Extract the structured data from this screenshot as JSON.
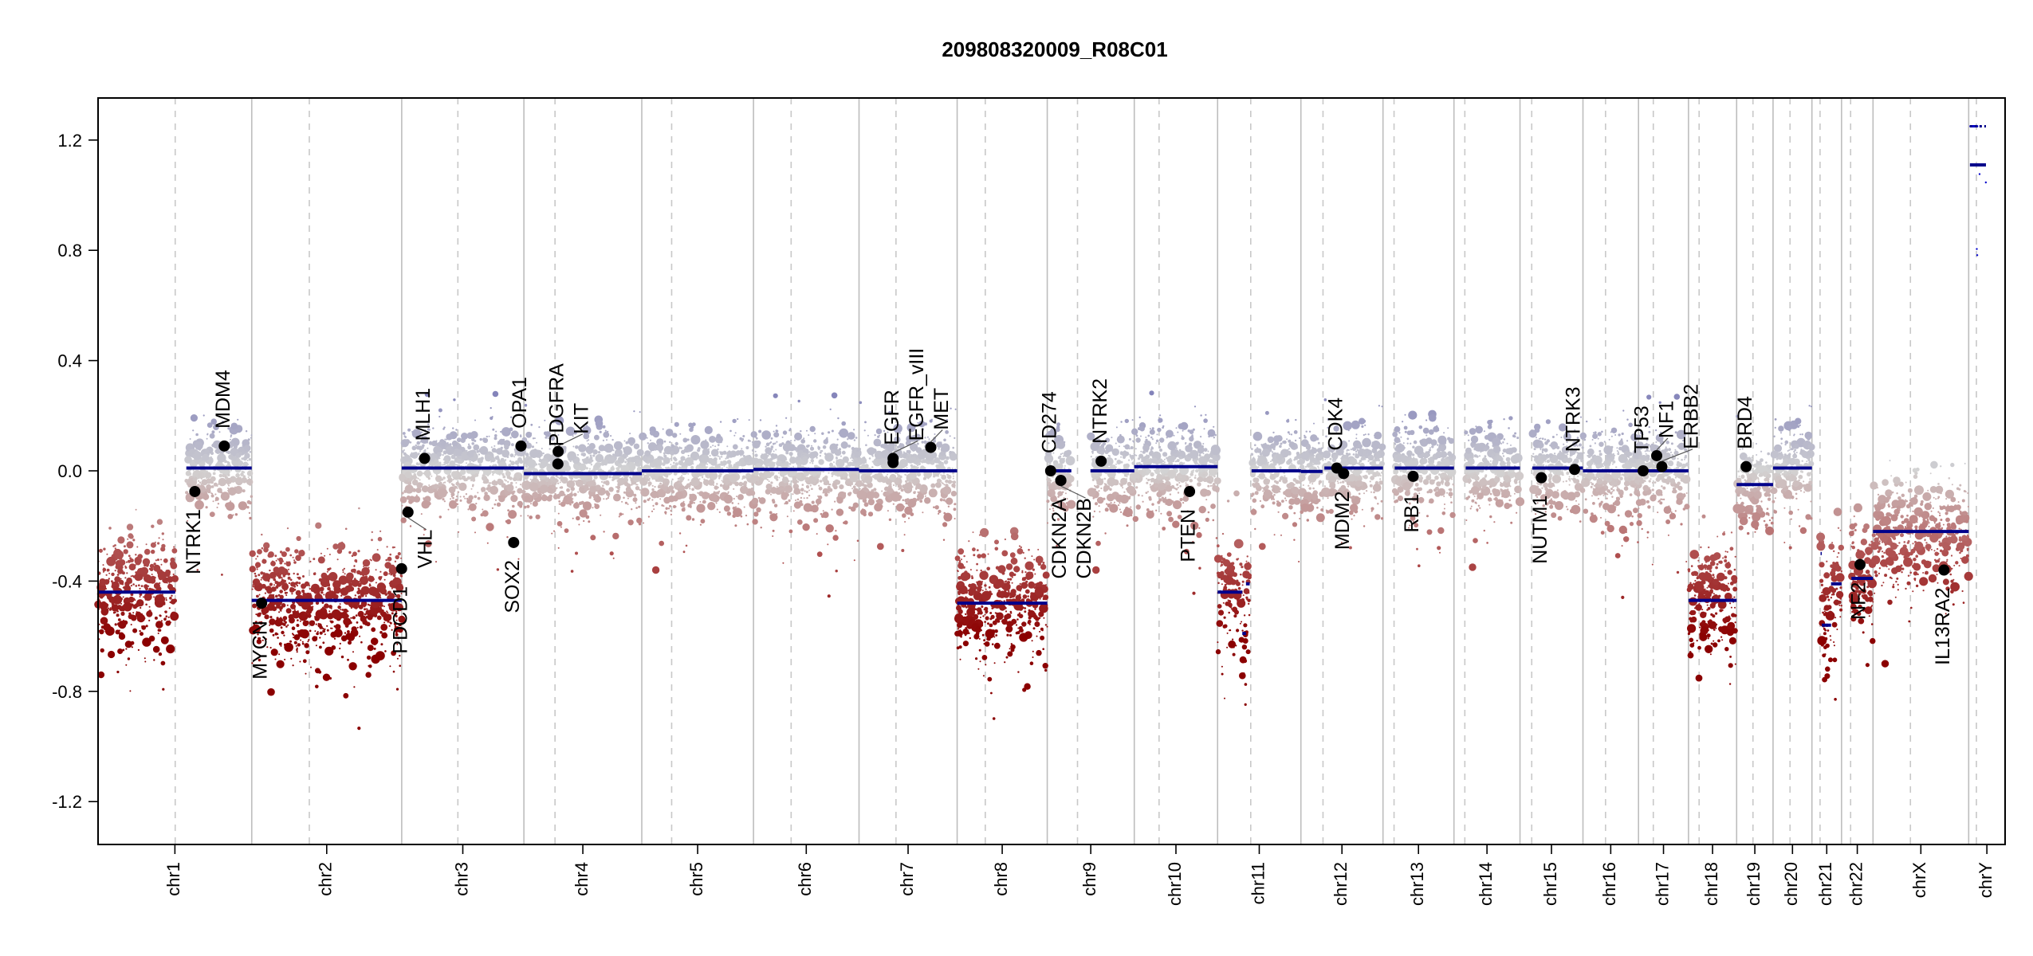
{
  "chart_data": {
    "type": "scatter",
    "title": "209808320009_R08C01",
    "xlabel": "",
    "ylabel": "",
    "ylim": [
      -1.35,
      1.35
    ],
    "yticks": [
      "1.2",
      "0.8",
      "0.4",
      "0.0",
      "-0.4",
      "-0.8",
      "-1.2"
    ],
    "ytick_values": [
      1.2,
      0.8,
      0.4,
      0.0,
      -0.4,
      -0.8,
      -1.2
    ],
    "colors": {
      "segment": "#00008b",
      "gain": "#7e7eb8",
      "neutral": "#d3d3d3",
      "loss_mid": "#b05050",
      "loss": "#8b0000",
      "gene_dot": "#000000",
      "chrom_line": "#bdbdbd",
      "centromere_line": "#c8c8c8"
    },
    "chromosomes": [
      {
        "name": "chr1",
        "length_mb": 249,
        "centromere_mb": 125
      },
      {
        "name": "chr2",
        "length_mb": 243,
        "centromere_mb": 93.3
      },
      {
        "name": "chr3",
        "length_mb": 198,
        "centromere_mb": 91
      },
      {
        "name": "chr4",
        "length_mb": 191,
        "centromere_mb": 50.4
      },
      {
        "name": "chr5",
        "length_mb": 181,
        "centromere_mb": 48.4
      },
      {
        "name": "chr6",
        "length_mb": 171,
        "centromere_mb": 61
      },
      {
        "name": "chr7",
        "length_mb": 159,
        "centromere_mb": 59.9
      },
      {
        "name": "chr8",
        "length_mb": 146,
        "centromere_mb": 45.6
      },
      {
        "name": "chr9",
        "length_mb": 141,
        "centromere_mb": 49
      },
      {
        "name": "chr10",
        "length_mb": 135,
        "centromere_mb": 40.2
      },
      {
        "name": "chr11",
        "length_mb": 135,
        "centromere_mb": 53.7
      },
      {
        "name": "chr12",
        "length_mb": 133,
        "centromere_mb": 35.8
      },
      {
        "name": "chr13",
        "length_mb": 115,
        "centromere_mb": 17.9
      },
      {
        "name": "chr14",
        "length_mb": 107,
        "centromere_mb": 17.6
      },
      {
        "name": "chr15",
        "length_mb": 102,
        "centromere_mb": 19
      },
      {
        "name": "chr16",
        "length_mb": 90,
        "centromere_mb": 36.6
      },
      {
        "name": "chr17",
        "length_mb": 81,
        "centromere_mb": 24
      },
      {
        "name": "chr18",
        "length_mb": 78,
        "centromere_mb": 17.2
      },
      {
        "name": "chr19",
        "length_mb": 59,
        "centromere_mb": 26.5
      },
      {
        "name": "chr20",
        "length_mb": 63,
        "centromere_mb": 27.5
      },
      {
        "name": "chr21",
        "length_mb": 48,
        "centromere_mb": 13.2
      },
      {
        "name": "chr22",
        "length_mb": 51,
        "centromere_mb": 14.7
      },
      {
        "name": "chrX",
        "length_mb": 155,
        "centromere_mb": 60.6
      },
      {
        "name": "chrY",
        "length_mb": 59,
        "centromere_mb": 12.5
      }
    ],
    "segments": [
      {
        "chr": "chr1",
        "start": 0,
        "end": 125,
        "mean": -0.44
      },
      {
        "chr": "chr1",
        "start": 143,
        "end": 249,
        "mean": 0.01
      },
      {
        "chr": "chr2",
        "start": 0,
        "end": 243,
        "mean": -0.47
      },
      {
        "chr": "chr3",
        "start": 0,
        "end": 198,
        "mean": 0.01
      },
      {
        "chr": "chr4",
        "start": 0,
        "end": 191,
        "mean": -0.01
      },
      {
        "chr": "chr5",
        "start": 0,
        "end": 181,
        "mean": 0.0
      },
      {
        "chr": "chr6",
        "start": 0,
        "end": 171,
        "mean": 0.005
      },
      {
        "chr": "chr7",
        "start": 0,
        "end": 159,
        "mean": 0.0
      },
      {
        "chr": "chr8",
        "start": 0,
        "end": 146,
        "mean": -0.48
      },
      {
        "chr": "chr9",
        "start": 0,
        "end": 39,
        "mean": 0.0
      },
      {
        "chr": "chr9",
        "start": 70,
        "end": 141,
        "mean": 0.0
      },
      {
        "chr": "chr10",
        "start": 0,
        "end": 135,
        "mean": 0.015
      },
      {
        "chr": "chr11",
        "start": 0,
        "end": 40,
        "mean": -0.44
      },
      {
        "chr": "chr11",
        "start": 40,
        "end": 46,
        "mean": -0.59
      },
      {
        "chr": "chr11",
        "start": 46,
        "end": 52,
        "mean": -0.41
      },
      {
        "chr": "chr11",
        "start": 55,
        "end": 135,
        "mean": 0.0
      },
      {
        "chr": "chr12",
        "start": 0,
        "end": 35,
        "mean": -0.002
      },
      {
        "chr": "chr12",
        "start": 38,
        "end": 133,
        "mean": 0.01
      },
      {
        "chr": "chr13",
        "start": 19,
        "end": 115,
        "mean": 0.01
      },
      {
        "chr": "chr14",
        "start": 19,
        "end": 107,
        "mean": 0.01
      },
      {
        "chr": "chr15",
        "start": 20,
        "end": 102,
        "mean": 0.01
      },
      {
        "chr": "chr16",
        "start": 0,
        "end": 90,
        "mean": 0.0
      },
      {
        "chr": "chr17",
        "start": 0,
        "end": 81,
        "mean": 0.0
      },
      {
        "chr": "chr18",
        "start": 0,
        "end": 78,
        "mean": -0.47
      },
      {
        "chr": "chr19",
        "start": 0,
        "end": 59,
        "mean": -0.05
      },
      {
        "chr": "chr20",
        "start": 0,
        "end": 63,
        "mean": 0.01
      },
      {
        "chr": "chr21",
        "start": 14,
        "end": 16,
        "mean": -0.3
      },
      {
        "chr": "chr21",
        "start": 16,
        "end": 31,
        "mean": -0.56
      },
      {
        "chr": "chr21",
        "start": 31,
        "end": 48,
        "mean": -0.41
      },
      {
        "chr": "chr22",
        "start": 16,
        "end": 51,
        "mean": -0.39
      },
      {
        "chr": "chrX",
        "start": 0,
        "end": 155,
        "mean": -0.22
      },
      {
        "chr": "chrY",
        "start": 2,
        "end": 28,
        "mean": 1.11
      }
    ],
    "genes": [
      {
        "name": "NTRK1",
        "chr": "chr1",
        "pos_mb": 156.8,
        "value": -0.075
      },
      {
        "name": "MDM4",
        "chr": "chr1",
        "pos_mb": 204.5,
        "value": 0.09
      },
      {
        "name": "MYCN",
        "chr": "chr2",
        "pos_mb": 16,
        "value": -0.48
      },
      {
        "name": "PDCD1",
        "chr": "chr2",
        "pos_mb": 242.8,
        "value": -0.355
      },
      {
        "name": "VHL",
        "chr": "chr3",
        "pos_mb": 10.2,
        "value": -0.15
      },
      {
        "name": "MLH1",
        "chr": "chr3",
        "pos_mb": 37,
        "value": 0.045
      },
      {
        "name": "SOX2",
        "chr": "chr3",
        "pos_mb": 181.4,
        "value": -0.26
      },
      {
        "name": "OPA1",
        "chr": "chr3",
        "pos_mb": 193.3,
        "value": 0.09
      },
      {
        "name": "KIT",
        "chr": "chr4",
        "pos_mb": 55.5,
        "value": 0.07
      },
      {
        "name": "PDGFRA",
        "chr": "chr4",
        "pos_mb": 55.1,
        "value": 0.025
      },
      {
        "name": "EGFR",
        "chr": "chr7",
        "pos_mb": 55.2,
        "value": 0.03
      },
      {
        "name": "EGFR_vIII",
        "chr": "chr7",
        "pos_mb": 55.2,
        "value": 0.045
      },
      {
        "name": "MET",
        "chr": "chr7",
        "pos_mb": 116.3,
        "value": 0.085
      },
      {
        "name": "CD274",
        "chr": "chr9",
        "pos_mb": 5.5,
        "value": 0.0
      },
      {
        "name": "CDKN2A",
        "chr": "chr9",
        "pos_mb": 21.97,
        "value": -0.035
      },
      {
        "name": "CDKN2B",
        "chr": "chr9",
        "pos_mb": 22.0,
        "value": -0.035
      },
      {
        "name": "NTRK2",
        "chr": "chr9",
        "pos_mb": 87.3,
        "value": 0.035
      },
      {
        "name": "PTEN",
        "chr": "chr10",
        "pos_mb": 89.6,
        "value": -0.075
      },
      {
        "name": "CDK4",
        "chr": "chr12",
        "pos_mb": 58.1,
        "value": 0.01
      },
      {
        "name": "MDM2",
        "chr": "chr12",
        "pos_mb": 69.2,
        "value": -0.01
      },
      {
        "name": "RB1",
        "chr": "chr13",
        "pos_mb": 48.9,
        "value": -0.02
      },
      {
        "name": "NUTM1",
        "chr": "chr15",
        "pos_mb": 34.6,
        "value": -0.025
      },
      {
        "name": "NTRK3",
        "chr": "chr15",
        "pos_mb": 88.4,
        "value": 0.005
      },
      {
        "name": "TP53",
        "chr": "chr17",
        "pos_mb": 7.5,
        "value": 0.0
      },
      {
        "name": "NF1",
        "chr": "chr17",
        "pos_mb": 29.5,
        "value": 0.055
      },
      {
        "name": "ERBB2",
        "chr": "chr17",
        "pos_mb": 37.8,
        "value": 0.015
      },
      {
        "name": "BRD4",
        "chr": "chr19",
        "pos_mb": 15.4,
        "value": 0.015
      },
      {
        "name": "NF2",
        "chr": "chr22",
        "pos_mb": 29.9,
        "value": -0.34
      },
      {
        "name": "IL13RA2",
        "chr": "chrX",
        "pos_mb": 115,
        "value": -0.36
      }
    ]
  }
}
